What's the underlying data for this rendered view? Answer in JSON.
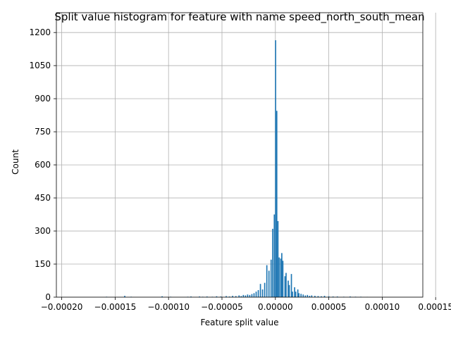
{
  "chart_data": {
    "type": "bar",
    "title": "Split value histogram for feature with name speed_north_south_mean",
    "xlabel": "Feature split value",
    "ylabel": "Count",
    "xlim": [
      -0.000205,
      0.000138
    ],
    "ylim": [
      0,
      1290
    ],
    "grid": true,
    "xticks": [
      -0.0002,
      -0.00015,
      -0.0001,
      -5e-05,
      0.0,
      5e-05,
      0.0001,
      0.00015
    ],
    "xtick_labels": [
      "−0.00020",
      "−0.00015",
      "−0.00010",
      "−0.00005",
      "0.00000",
      "0.00005",
      "0.00010",
      "0.00015"
    ],
    "yticks": [
      0,
      150,
      300,
      450,
      600,
      750,
      900,
      1050,
      1200
    ],
    "ytick_labels": [
      "0",
      "150",
      "300",
      "450",
      "600",
      "750",
      "900",
      "1050",
      "1200"
    ],
    "bin_width": 1.1e-06,
    "color": "#1f77b4",
    "bins": [
      {
        "x": -0.000158,
        "count": 2
      },
      {
        "x": -0.000141,
        "count": 6
      },
      {
        "x": -0.000135,
        "count": 2
      },
      {
        "x": -0.000106,
        "count": 4
      },
      {
        "x": -9.8e-05,
        "count": 2
      },
      {
        "x": -8.2e-05,
        "count": 2
      },
      {
        "x": -7.9e-05,
        "count": 3
      },
      {
        "x": -7.1e-05,
        "count": 3
      },
      {
        "x": -6.8e-05,
        "count": 2
      },
      {
        "x": -6.4e-05,
        "count": 3
      },
      {
        "x": -5.9e-05,
        "count": 2
      },
      {
        "x": -5.5e-05,
        "count": 4
      },
      {
        "x": -5.1e-05,
        "count": 3
      },
      {
        "x": -4.6e-05,
        "count": 5
      },
      {
        "x": -4.3e-05,
        "count": 3
      },
      {
        "x": -4e-05,
        "count": 6
      },
      {
        "x": -3.7e-05,
        "count": 5
      },
      {
        "x": -3.4e-05,
        "count": 8
      },
      {
        "x": -3.2e-05,
        "count": 5
      },
      {
        "x": -3e-05,
        "count": 10
      },
      {
        "x": -2.8e-05,
        "count": 8
      },
      {
        "x": -2.6e-05,
        "count": 12
      },
      {
        "x": -2.4e-05,
        "count": 10
      },
      {
        "x": -2.2e-05,
        "count": 14
      },
      {
        "x": -2e-05,
        "count": 18
      },
      {
        "x": -1.8e-05,
        "count": 25
      },
      {
        "x": -1.6e-05,
        "count": 32
      },
      {
        "x": -1.4e-05,
        "count": 60
      },
      {
        "x": -1.2e-05,
        "count": 35
      },
      {
        "x": -1e-05,
        "count": 65
      },
      {
        "x": -8e-06,
        "count": 145
      },
      {
        "x": -6e-06,
        "count": 120
      },
      {
        "x": -4e-06,
        "count": 170
      },
      {
        "x": -2.5e-06,
        "count": 310
      },
      {
        "x": -1e-06,
        "count": 375
      },
      {
        "x": 2e-07,
        "count": 1165
      },
      {
        "x": 1.3e-06,
        "count": 845
      },
      {
        "x": 2.4e-06,
        "count": 345
      },
      {
        "x": 3.5e-06,
        "count": 180
      },
      {
        "x": 5e-06,
        "count": 175
      },
      {
        "x": 6e-06,
        "count": 200
      },
      {
        "x": 7e-06,
        "count": 165
      },
      {
        "x": 9e-06,
        "count": 95
      },
      {
        "x": 1e-05,
        "count": 110
      },
      {
        "x": 1.2e-05,
        "count": 75
      },
      {
        "x": 1.3e-05,
        "count": 55
      },
      {
        "x": 1.5e-05,
        "count": 105
      },
      {
        "x": 1.6e-05,
        "count": 25
      },
      {
        "x": 1.8e-05,
        "count": 45
      },
      {
        "x": 1.9e-05,
        "count": 25
      },
      {
        "x": 2.1e-05,
        "count": 35
      },
      {
        "x": 2.2e-05,
        "count": 18
      },
      {
        "x": 2.4e-05,
        "count": 15
      },
      {
        "x": 2.6e-05,
        "count": 12
      },
      {
        "x": 2.8e-05,
        "count": 8
      },
      {
        "x": 3e-05,
        "count": 10
      },
      {
        "x": 3.2e-05,
        "count": 6
      },
      {
        "x": 3.4e-05,
        "count": 8
      },
      {
        "x": 3.7e-05,
        "count": 6
      },
      {
        "x": 4e-05,
        "count": 5
      },
      {
        "x": 4.3e-05,
        "count": 4
      },
      {
        "x": 4.6e-05,
        "count": 6
      },
      {
        "x": 5e-05,
        "count": 4
      },
      {
        "x": 5.4e-05,
        "count": 3
      },
      {
        "x": 5.8e-05,
        "count": 3
      },
      {
        "x": 6.4e-05,
        "count": 2
      },
      {
        "x": 7e-05,
        "count": 3
      },
      {
        "x": 7.5e-05,
        "count": 2
      },
      {
        "x": 8e-05,
        "count": 2
      },
      {
        "x": 8.6e-05,
        "count": 1
      }
    ]
  }
}
